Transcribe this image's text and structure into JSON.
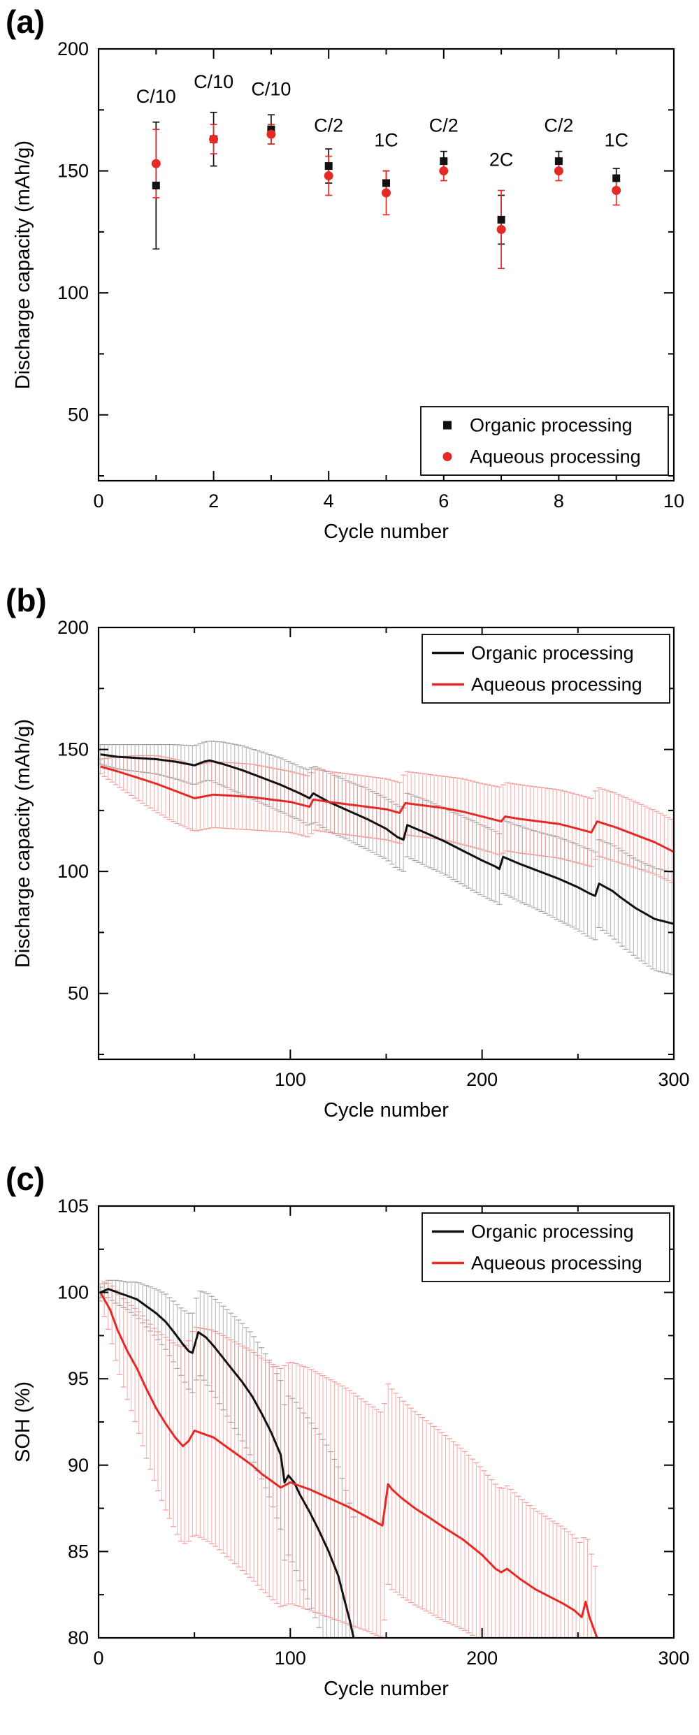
{
  "page": {
    "background": "#ffffff"
  },
  "colors": {
    "organic": "#111111",
    "aqueous": "#e32a26",
    "organic_err": "#9a9a9a",
    "aqueous_err": "#f0928f"
  },
  "chart_data": [
    {
      "id": "a",
      "panel_label": "(a)",
      "type": "scatter",
      "title": "",
      "xlabel": "Cycle number",
      "ylabel": "Discharge capacity (mAh/g)",
      "xlim": [
        0,
        10
      ],
      "ylim": [
        23,
        200
      ],
      "xticks": [
        0,
        2,
        4,
        6,
        8,
        10
      ],
      "yticks": [
        50,
        100,
        150,
        200
      ],
      "x_minor_step": 1,
      "y_minor_step": 25,
      "grid": false,
      "legend_position": "bottom-right",
      "series": [
        {
          "name": "Organic processing",
          "marker": "square",
          "color_key": "organic",
          "x": [
            1,
            2,
            3,
            4,
            5,
            6,
            7,
            8,
            9
          ],
          "y": [
            144,
            163,
            167,
            152,
            145,
            154,
            130,
            154,
            147
          ],
          "err": [
            26,
            11,
            6,
            7,
            5,
            4,
            10,
            4,
            4
          ]
        },
        {
          "name": "Aqueous processing",
          "marker": "circle",
          "color_key": "aqueous",
          "x": [
            1,
            2,
            3,
            4,
            5,
            6,
            7,
            8,
            9
          ],
          "y": [
            153,
            163,
            165,
            148,
            141,
            150,
            126,
            150,
            142
          ],
          "err": [
            14,
            6,
            4,
            8,
            9,
            4,
            16,
            4,
            6
          ]
        }
      ],
      "annotations": [
        {
          "text": "C/10",
          "x": 1,
          "y": 178
        },
        {
          "text": "C/10",
          "x": 2,
          "y": 184
        },
        {
          "text": "C/10",
          "x": 3,
          "y": 181
        },
        {
          "text": "C/2",
          "x": 4,
          "y": 166
        },
        {
          "text": "1C",
          "x": 5,
          "y": 160
        },
        {
          "text": "C/2",
          "x": 6,
          "y": 166
        },
        {
          "text": "2C",
          "x": 7,
          "y": 152
        },
        {
          "text": "C/2",
          "x": 8,
          "y": 166
        },
        {
          "text": "1C",
          "x": 9,
          "y": 160
        }
      ]
    },
    {
      "id": "b",
      "panel_label": "(b)",
      "type": "line",
      "title": "",
      "xlabel": "Cycle number",
      "ylabel": "Discharge capacity (mAh/g)",
      "xlim": [
        0,
        300
      ],
      "ylim": [
        23,
        200
      ],
      "xticks": [
        100,
        200,
        300
      ],
      "yticks": [
        50,
        100,
        150,
        200
      ],
      "x_minor_step": 50,
      "y_minor_step": 25,
      "grid": false,
      "legend_position": "top-right",
      "err_step": 2,
      "series": [
        {
          "name": "Organic processing",
          "color_key": "organic",
          "x": [
            1,
            10,
            20,
            30,
            40,
            50,
            55,
            58,
            65,
            75,
            85,
            95,
            105,
            110,
            112,
            120,
            130,
            140,
            150,
            156,
            159,
            161,
            170,
            180,
            190,
            200,
            207,
            209,
            211,
            220,
            230,
            240,
            250,
            256,
            259,
            261,
            268,
            272,
            280,
            290,
            300
          ],
          "y": [
            148,
            147,
            146.5,
            146,
            145,
            143.5,
            145,
            145.5,
            144,
            141.5,
            138.5,
            135.5,
            132,
            130,
            132,
            128.5,
            125,
            121.5,
            117.5,
            114,
            113,
            119,
            116,
            112.5,
            108.5,
            104.5,
            102,
            101,
            106,
            103,
            100,
            97,
            93.5,
            91,
            90,
            95,
            92,
            89.5,
            85,
            80.5,
            78.5
          ],
          "err": [
            4,
            5,
            5.5,
            6,
            7,
            8,
            8,
            8,
            9,
            10,
            10.5,
            11,
            11,
            11.5,
            11.5,
            12,
            12,
            12.5,
            12.5,
            13,
            13,
            13,
            13.5,
            13.5,
            14,
            14.5,
            14.5,
            14.5,
            15,
            15.5,
            16,
            17,
            17.5,
            18,
            18,
            18,
            19,
            19.5,
            20,
            21,
            21
          ]
        },
        {
          "name": "Aqueous processing",
          "color_key": "aqueous",
          "x": [
            1,
            10,
            20,
            30,
            40,
            50,
            60,
            70,
            80,
            90,
            100,
            110,
            112,
            120,
            130,
            140,
            150,
            157,
            160,
            170,
            180,
            190,
            200,
            210,
            212,
            220,
            230,
            240,
            250,
            257,
            260,
            270,
            280,
            290,
            300
          ],
          "y": [
            143,
            141,
            138.5,
            136,
            133,
            130,
            131.5,
            131,
            130.5,
            129.5,
            128.5,
            126.5,
            129.5,
            128.5,
            127.5,
            126.5,
            125.5,
            124,
            128,
            127,
            126,
            124.5,
            122.5,
            120.5,
            122.5,
            121.5,
            120.5,
            119.5,
            117.5,
            116,
            120.5,
            118,
            115,
            112,
            108
          ],
          "err": [
            3,
            6,
            9,
            11.5,
            13,
            13.5,
            13.5,
            13.5,
            13.5,
            13,
            12.5,
            12.5,
            12.5,
            12.5,
            12.5,
            12.5,
            12.5,
            12.5,
            13,
            13,
            13,
            13.5,
            13.5,
            14,
            14,
            14,
            14,
            14,
            14,
            14,
            14,
            14,
            13.5,
            13,
            13
          ]
        }
      ],
      "annotations": []
    },
    {
      "id": "c",
      "panel_label": "(c)",
      "type": "line",
      "title": "",
      "xlabel": "Cycle number",
      "ylabel": "SOH (%)",
      "xlim": [
        0,
        300
      ],
      "ylim": [
        80,
        105
      ],
      "xticks": [
        0,
        100,
        200,
        300
      ],
      "yticks": [
        80,
        85,
        90,
        95,
        100,
        105
      ],
      "x_minor_step": 50,
      "y_minor_step": 2.5,
      "grid": false,
      "legend_position": "top-right",
      "err_step": 2,
      "series": [
        {
          "name": "Organic processing",
          "color_key": "organic",
          "x": [
            1,
            5,
            10,
            15,
            20,
            25,
            30,
            35,
            40,
            44,
            47,
            49,
            52,
            56,
            60,
            65,
            70,
            75,
            80,
            85,
            90,
            95,
            97,
            99,
            102,
            105,
            110,
            115,
            120,
            125,
            128,
            131,
            133
          ],
          "y": [
            100,
            100.2,
            100,
            99.8,
            99.6,
            99.2,
            98.8,
            98.3,
            97.6,
            97,
            96.6,
            96.5,
            97.7,
            97.4,
            96.9,
            96.2,
            95.5,
            94.8,
            94,
            93,
            91.9,
            90.6,
            89,
            89.4,
            89,
            88.3,
            87.3,
            86.2,
            85,
            83.6,
            82.3,
            81,
            80
          ],
          "err": [
            0.3,
            0.5,
            0.7,
            0.8,
            1,
            1.2,
            1.4,
            1.6,
            1.8,
            2,
            2.2,
            2.3,
            2.4,
            2.6,
            2.8,
            3,
            3.2,
            3.4,
            3.6,
            3.8,
            4,
            4.3,
            4.5,
            4.6,
            4.8,
            5,
            5.3,
            5.6,
            6,
            6.3,
            6.6,
            6.8,
            7
          ]
        },
        {
          "name": "Aqueous processing",
          "color_key": "aqueous",
          "x": [
            1,
            3,
            6,
            10,
            15,
            20,
            25,
            30,
            35,
            40,
            44,
            47,
            50,
            55,
            60,
            65,
            70,
            75,
            80,
            85,
            90,
            95,
            100,
            105,
            110,
            120,
            130,
            140,
            148,
            151,
            153,
            158,
            165,
            172,
            180,
            190,
            200,
            207,
            210,
            213,
            220,
            228,
            235,
            242,
            248,
            252,
            254,
            256,
            258,
            260
          ],
          "y": [
            100,
            99.6,
            99,
            97.8,
            96.6,
            95.6,
            94.4,
            93.3,
            92.4,
            91.6,
            91.1,
            91.4,
            92,
            91.8,
            91.6,
            91.2,
            90.8,
            90.4,
            90,
            89.5,
            89.1,
            88.7,
            89,
            88.8,
            88.6,
            88.1,
            87.6,
            87,
            86.5,
            88.9,
            88.6,
            88.1,
            87.5,
            87,
            86.4,
            85.7,
            84.8,
            84,
            83.8,
            84,
            83.4,
            82.8,
            82.4,
            82,
            81.6,
            81.2,
            82.1,
            81.2,
            80.6,
            80
          ],
          "err": [
            0.5,
            1,
            1.5,
            2.2,
            2.8,
            3.4,
            4,
            4.5,
            5,
            5.4,
            5.7,
            5.8,
            6,
            6.1,
            6.2,
            6.3,
            6.4,
            6.5,
            6.6,
            6.7,
            6.8,
            6.9,
            7,
            7,
            7,
            6.9,
            6.8,
            6.6,
            6.5,
            5.8,
            5.8,
            5.7,
            5.6,
            5.5,
            5.4,
            5.2,
            5,
            4.9,
            4.8,
            4.8,
            4.7,
            4.6,
            4.5,
            4.4,
            4.3,
            4.2,
            4.1,
            4,
            3.9,
            3.8
          ]
        }
      ],
      "annotations": []
    }
  ]
}
